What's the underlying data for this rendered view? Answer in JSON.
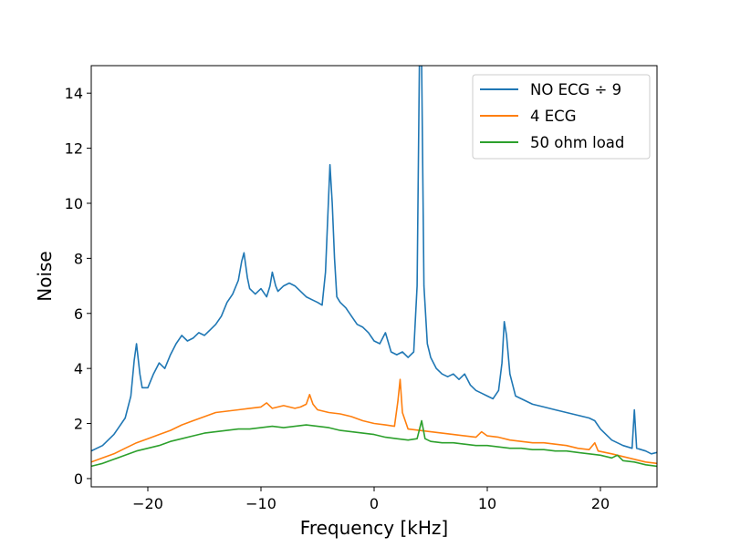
{
  "chart_data": {
    "type": "line",
    "title": "",
    "xlabel": "Frequency [kHz]",
    "ylabel": "Noise",
    "xlim": [
      -25,
      25
    ],
    "ylim": [
      -0.3,
      15
    ],
    "xticks": [
      -20,
      -10,
      0,
      10,
      20
    ],
    "xtick_labels": [
      "−20",
      "−10",
      "0",
      "10",
      "20"
    ],
    "yticks": [
      0,
      2,
      4,
      6,
      8,
      10,
      12,
      14
    ],
    "ytick_labels": [
      "0",
      "2",
      "4",
      "6",
      "8",
      "10",
      "12",
      "14"
    ],
    "grid": false,
    "legend_position": "top-right",
    "series": [
      {
        "name": "NO ECG ÷ 9",
        "color": "#1f77b4",
        "points": [
          [
            -25,
            1.0
          ],
          [
            -24,
            1.2
          ],
          [
            -23,
            1.6
          ],
          [
            -22,
            2.2
          ],
          [
            -21.5,
            3.0
          ],
          [
            -21.2,
            4.3
          ],
          [
            -21,
            4.9
          ],
          [
            -20.7,
            3.8
          ],
          [
            -20.5,
            3.3
          ],
          [
            -20,
            3.3
          ],
          [
            -19.5,
            3.8
          ],
          [
            -19,
            4.2
          ],
          [
            -18.5,
            4.0
          ],
          [
            -18,
            4.5
          ],
          [
            -17.5,
            4.9
          ],
          [
            -17,
            5.2
          ],
          [
            -16.5,
            5.0
          ],
          [
            -16,
            5.1
          ],
          [
            -15.5,
            5.3
          ],
          [
            -15,
            5.2
          ],
          [
            -14.5,
            5.4
          ],
          [
            -14,
            5.6
          ],
          [
            -13.5,
            5.9
          ],
          [
            -13,
            6.4
          ],
          [
            -12.5,
            6.7
          ],
          [
            -12,
            7.2
          ],
          [
            -11.7,
            7.9
          ],
          [
            -11.5,
            8.2
          ],
          [
            -11.2,
            7.3
          ],
          [
            -11,
            6.9
          ],
          [
            -10.5,
            6.7
          ],
          [
            -10,
            6.9
          ],
          [
            -9.5,
            6.6
          ],
          [
            -9.2,
            7.0
          ],
          [
            -9,
            7.5
          ],
          [
            -8.7,
            7.0
          ],
          [
            -8.5,
            6.8
          ],
          [
            -8,
            7.0
          ],
          [
            -7.5,
            7.1
          ],
          [
            -7,
            7.0
          ],
          [
            -6.5,
            6.8
          ],
          [
            -6,
            6.6
          ],
          [
            -5.5,
            6.5
          ],
          [
            -5,
            6.4
          ],
          [
            -4.6,
            6.3
          ],
          [
            -4.3,
            7.5
          ],
          [
            -4.1,
            9.5
          ],
          [
            -3.9,
            11.4
          ],
          [
            -3.7,
            10.0
          ],
          [
            -3.5,
            8.0
          ],
          [
            -3.3,
            6.6
          ],
          [
            -3,
            6.4
          ],
          [
            -2.5,
            6.2
          ],
          [
            -2,
            5.9
          ],
          [
            -1.5,
            5.6
          ],
          [
            -1,
            5.5
          ],
          [
            -0.5,
            5.3
          ],
          [
            0,
            5.0
          ],
          [
            0.5,
            4.9
          ],
          [
            1,
            5.3
          ],
          [
            1.5,
            4.6
          ],
          [
            2,
            4.5
          ],
          [
            2.5,
            4.6
          ],
          [
            3,
            4.4
          ],
          [
            3.5,
            4.6
          ],
          [
            3.8,
            7.0
          ],
          [
            4,
            15
          ],
          [
            4.2,
            15
          ],
          [
            4.4,
            7.0
          ],
          [
            4.7,
            4.9
          ],
          [
            5,
            4.4
          ],
          [
            5.5,
            4.0
          ],
          [
            6,
            3.8
          ],
          [
            6.5,
            3.7
          ],
          [
            7,
            3.8
          ],
          [
            7.5,
            3.6
          ],
          [
            8,
            3.8
          ],
          [
            8.5,
            3.4
          ],
          [
            9,
            3.2
          ],
          [
            9.5,
            3.1
          ],
          [
            10,
            3.0
          ],
          [
            10.5,
            2.9
          ],
          [
            11,
            3.2
          ],
          [
            11.3,
            4.2
          ],
          [
            11.5,
            5.7
          ],
          [
            11.7,
            5.2
          ],
          [
            12,
            3.8
          ],
          [
            12.5,
            3.0
          ],
          [
            13,
            2.9
          ],
          [
            13.5,
            2.8
          ],
          [
            14,
            2.7
          ],
          [
            15,
            2.6
          ],
          [
            16,
            2.5
          ],
          [
            17,
            2.4
          ],
          [
            18,
            2.3
          ],
          [
            19,
            2.2
          ],
          [
            19.5,
            2.1
          ],
          [
            20,
            1.8
          ],
          [
            21,
            1.4
          ],
          [
            22,
            1.2
          ],
          [
            22.8,
            1.1
          ],
          [
            23,
            2.5
          ],
          [
            23.2,
            1.1
          ],
          [
            24,
            1.0
          ],
          [
            24.5,
            0.9
          ],
          [
            25,
            0.95
          ]
        ]
      },
      {
        "name": "4 ECG",
        "color": "#ff7f0e",
        "points": [
          [
            -25,
            0.6
          ],
          [
            -24,
            0.75
          ],
          [
            -23,
            0.9
          ],
          [
            -22,
            1.1
          ],
          [
            -21,
            1.3
          ],
          [
            -20,
            1.45
          ],
          [
            -19,
            1.6
          ],
          [
            -18,
            1.75
          ],
          [
            -17,
            1.95
          ],
          [
            -16,
            2.1
          ],
          [
            -15,
            2.25
          ],
          [
            -14,
            2.4
          ],
          [
            -13,
            2.45
          ],
          [
            -12,
            2.5
          ],
          [
            -11,
            2.55
          ],
          [
            -10,
            2.6
          ],
          [
            -9.5,
            2.75
          ],
          [
            -9,
            2.55
          ],
          [
            -8.5,
            2.6
          ],
          [
            -8,
            2.65
          ],
          [
            -7.5,
            2.6
          ],
          [
            -7,
            2.55
          ],
          [
            -6.5,
            2.6
          ],
          [
            -6,
            2.7
          ],
          [
            -5.7,
            3.05
          ],
          [
            -5.4,
            2.7
          ],
          [
            -5,
            2.5
          ],
          [
            -4.5,
            2.45
          ],
          [
            -4,
            2.4
          ],
          [
            -3,
            2.35
          ],
          [
            -2,
            2.25
          ],
          [
            -1,
            2.1
          ],
          [
            0,
            2.0
          ],
          [
            1,
            1.95
          ],
          [
            1.8,
            1.9
          ],
          [
            2.1,
            2.8
          ],
          [
            2.3,
            3.6
          ],
          [
            2.5,
            2.4
          ],
          [
            3,
            1.8
          ],
          [
            4,
            1.75
          ],
          [
            5,
            1.7
          ],
          [
            6,
            1.65
          ],
          [
            7,
            1.6
          ],
          [
            8,
            1.55
          ],
          [
            9,
            1.5
          ],
          [
            9.5,
            1.7
          ],
          [
            10,
            1.55
          ],
          [
            11,
            1.5
          ],
          [
            12,
            1.4
          ],
          [
            13,
            1.35
          ],
          [
            14,
            1.3
          ],
          [
            15,
            1.3
          ],
          [
            16,
            1.25
          ],
          [
            17,
            1.2
          ],
          [
            18,
            1.1
          ],
          [
            19,
            1.05
          ],
          [
            19.5,
            1.3
          ],
          [
            19.8,
            1.0
          ],
          [
            21,
            0.9
          ],
          [
            22,
            0.8
          ],
          [
            23,
            0.7
          ],
          [
            24,
            0.6
          ],
          [
            25,
            0.55
          ]
        ]
      },
      {
        "name": "50 ohm load",
        "color": "#2ca02c",
        "points": [
          [
            -25,
            0.45
          ],
          [
            -24,
            0.55
          ],
          [
            -23,
            0.7
          ],
          [
            -22,
            0.85
          ],
          [
            -21,
            1.0
          ],
          [
            -20,
            1.1
          ],
          [
            -19,
            1.2
          ],
          [
            -18,
            1.35
          ],
          [
            -17,
            1.45
          ],
          [
            -16,
            1.55
          ],
          [
            -15,
            1.65
          ],
          [
            -14,
            1.7
          ],
          [
            -13,
            1.75
          ],
          [
            -12,
            1.8
          ],
          [
            -11,
            1.8
          ],
          [
            -10,
            1.85
          ],
          [
            -9,
            1.9
          ],
          [
            -8,
            1.85
          ],
          [
            -7,
            1.9
          ],
          [
            -6,
            1.95
          ],
          [
            -5,
            1.9
          ],
          [
            -4,
            1.85
          ],
          [
            -3,
            1.75
          ],
          [
            -2,
            1.7
          ],
          [
            -1,
            1.65
          ],
          [
            0,
            1.6
          ],
          [
            1,
            1.5
          ],
          [
            2,
            1.45
          ],
          [
            3,
            1.4
          ],
          [
            3.8,
            1.45
          ],
          [
            4.2,
            2.1
          ],
          [
            4.5,
            1.45
          ],
          [
            5,
            1.35
          ],
          [
            6,
            1.3
          ],
          [
            7,
            1.3
          ],
          [
            8,
            1.25
          ],
          [
            9,
            1.2
          ],
          [
            10,
            1.2
          ],
          [
            11,
            1.15
          ],
          [
            12,
            1.1
          ],
          [
            13,
            1.1
          ],
          [
            14,
            1.05
          ],
          [
            15,
            1.05
          ],
          [
            16,
            1.0
          ],
          [
            17,
            1.0
          ],
          [
            18,
            0.95
          ],
          [
            19,
            0.9
          ],
          [
            20,
            0.85
          ],
          [
            21,
            0.75
          ],
          [
            21.5,
            0.85
          ],
          [
            22,
            0.65
          ],
          [
            23,
            0.6
          ],
          [
            24,
            0.5
          ],
          [
            25,
            0.45
          ]
        ]
      }
    ]
  }
}
